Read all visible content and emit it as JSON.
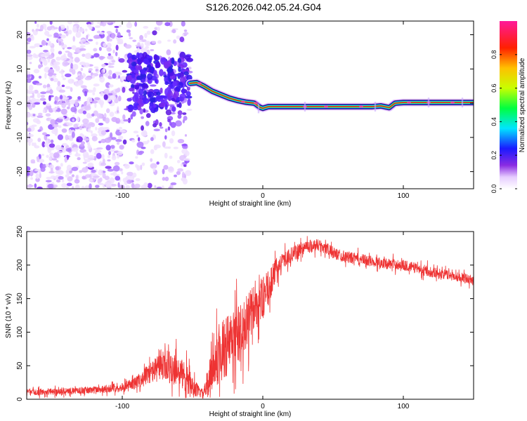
{
  "title": "S126.2026.042.05.24.G04",
  "colors": {
    "snr_line": "#ee3333",
    "axis": "#000000",
    "track_core": "#e8241c"
  },
  "chart_data": [
    {
      "type": "heatmap",
      "xlabel": "Height of straight line (km)",
      "ylabel": "Frequency (Hz)",
      "xlim": [
        -168,
        150
      ],
      "ylim": [
        -25,
        24
      ],
      "xticks": [
        -100,
        0,
        100
      ],
      "yticks": [
        -20,
        -10,
        0,
        10,
        20
      ],
      "grid": false,
      "colorbar": {
        "label": "Normalized spectral amplitude",
        "range": [
          0.0,
          1.0
        ],
        "ticks": [
          0.0,
          0.2,
          0.4,
          0.6,
          0.8
        ],
        "tick_labels": [
          "0.0",
          "0.2",
          "0.4",
          "0.6",
          "0.8"
        ],
        "colormap": "rainbow (white → purple → blue → cyan → green → yellow → red → magenta)"
      },
      "signal_track": {
        "x": [
          -52,
          -47,
          -42,
          -36,
          -30,
          -24,
          -18,
          -12,
          -6,
          -2,
          0,
          4,
          10,
          20,
          40,
          60,
          78,
          84,
          90,
          94,
          100,
          120,
          150
        ],
        "frequency": [
          5.8,
          6.0,
          5.0,
          3.5,
          2.5,
          1.5,
          0.8,
          0.3,
          0.0,
          -1.2,
          -1.5,
          -1.0,
          -1.0,
          -1.0,
          -1.0,
          -1.0,
          -1.0,
          -0.8,
          -1.3,
          0.0,
          0.2,
          0.2,
          0.2
        ]
      },
      "noise_region": {
        "x_range": [
          -168,
          -52
        ],
        "frequency_range": [
          -25,
          24
        ]
      }
    },
    {
      "type": "line",
      "xlabel": "Height of straight line (km)",
      "ylabel": "SNR (10 * v/v)",
      "xlim": [
        -168,
        150
      ],
      "ylim": [
        0,
        250
      ],
      "xticks": [
        -100,
        0,
        100
      ],
      "yticks": [
        0,
        50,
        100,
        150,
        200,
        250
      ],
      "grid": false,
      "series": [
        {
          "name": "SNR",
          "x": [
            -168,
            -140,
            -120,
            -100,
            -90,
            -80,
            -70,
            -60,
            -55,
            -50,
            -45,
            -42,
            -40,
            -35,
            -30,
            -25,
            -20,
            -15,
            -10,
            -5,
            0,
            5,
            10,
            15,
            20,
            25,
            30,
            40,
            45,
            50,
            60,
            70,
            80,
            90,
            100,
            110,
            120,
            130,
            140,
            150
          ],
          "values": [
            10,
            12,
            14,
            18,
            25,
            40,
            50,
            45,
            30,
            20,
            10,
            8,
            20,
            50,
            70,
            80,
            90,
            100,
            120,
            140,
            150,
            170,
            195,
            208,
            215,
            220,
            228,
            230,
            225,
            218,
            212,
            208,
            205,
            202,
            200,
            195,
            190,
            186,
            182,
            178
          ],
          "noise_amplitude": [
            6,
            6,
            7,
            8,
            12,
            20,
            30,
            35,
            30,
            18,
            10,
            8,
            25,
            45,
            55,
            60,
            60,
            55,
            50,
            45,
            40,
            30,
            20,
            15,
            14,
            14,
            12,
            12,
            12,
            11,
            11,
            11,
            10,
            10,
            10,
            10,
            10,
            9,
            9,
            9
          ]
        }
      ]
    }
  ]
}
